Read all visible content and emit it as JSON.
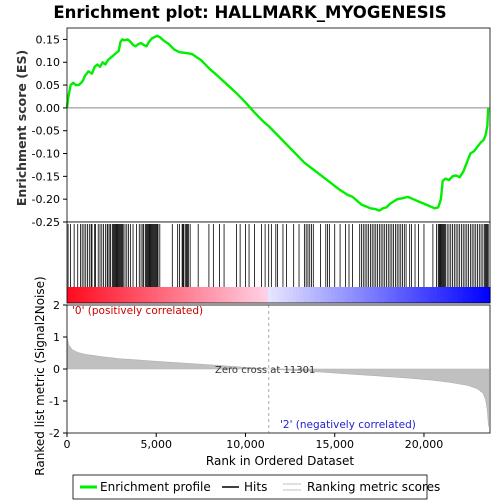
{
  "chart_data": {
    "type": "line",
    "title": "Enrichment plot: HALLMARK_MYOGENESIS",
    "es_panel": {
      "ylabel": "Enrichment score (ES)",
      "ylim": [
        -0.25,
        0.175
      ],
      "yticks": [
        0.15,
        0.1,
        0.05,
        0.0,
        -0.05,
        -0.1,
        -0.15,
        -0.2,
        -0.25
      ],
      "ytick_labels": [
        "0.15",
        "0.10",
        "0.05",
        "0.00",
        "-0.05",
        "-0.10",
        "-0.15",
        "-0.20",
        "-0.25"
      ],
      "series": [
        {
          "name": "Enrichment profile",
          "color": "#00ee00",
          "x": [
            0,
            60,
            200,
            350,
            500,
            650,
            800,
            900,
            1000,
            1200,
            1400,
            1550,
            1700,
            1850,
            2000,
            2150,
            2300,
            2450,
            2600,
            2750,
            2900,
            3000,
            3100,
            3200,
            3400,
            3550,
            3700,
            3850,
            4000,
            4150,
            4300,
            4450,
            4600,
            4750,
            4900,
            5050,
            5200,
            5400,
            5700,
            6000,
            6300,
            6700,
            7000,
            7500,
            8000,
            8500,
            9000,
            9500,
            10000,
            10500,
            11000,
            11301,
            11800,
            12300,
            12800,
            13300,
            13800,
            14300,
            14800,
            15300,
            15700,
            16000,
            16300,
            16500,
            16700,
            17000,
            17300,
            17500,
            17700,
            17900,
            18100,
            18300,
            18500,
            18800,
            19100,
            19400,
            19700,
            20000,
            20300,
            20600,
            20800,
            20950,
            21050,
            21200,
            21400,
            21600,
            21800,
            22000,
            22200,
            22400,
            22600,
            22800,
            23000,
            23200,
            23350,
            23450,
            23550,
            23600
          ],
          "y": [
            0.0,
            0.02,
            0.05,
            0.055,
            0.05,
            0.05,
            0.055,
            0.06,
            0.07,
            0.08,
            0.075,
            0.09,
            0.095,
            0.09,
            0.1,
            0.095,
            0.105,
            0.11,
            0.115,
            0.12,
            0.125,
            0.145,
            0.15,
            0.148,
            0.15,
            0.145,
            0.138,
            0.135,
            0.14,
            0.142,
            0.138,
            0.135,
            0.145,
            0.152,
            0.155,
            0.158,
            0.155,
            0.148,
            0.14,
            0.128,
            0.122,
            0.12,
            0.118,
            0.105,
            0.085,
            0.068,
            0.05,
            0.032,
            0.012,
            -0.01,
            -0.03,
            -0.04,
            -0.06,
            -0.08,
            -0.1,
            -0.12,
            -0.135,
            -0.15,
            -0.165,
            -0.18,
            -0.19,
            -0.195,
            -0.205,
            -0.212,
            -0.215,
            -0.22,
            -0.222,
            -0.225,
            -0.22,
            -0.218,
            -0.21,
            -0.205,
            -0.2,
            -0.198,
            -0.195,
            -0.2,
            -0.205,
            -0.21,
            -0.215,
            -0.22,
            -0.218,
            -0.2,
            -0.16,
            -0.155,
            -0.158,
            -0.15,
            -0.148,
            -0.152,
            -0.14,
            -0.12,
            -0.1,
            -0.095,
            -0.085,
            -0.075,
            -0.07,
            -0.06,
            -0.04,
            0.0
          ]
        }
      ]
    },
    "hits_panel": {
      "series_name": "Hits",
      "hit_positions": [
        60,
        200,
        400,
        600,
        750,
        850,
        950,
        1050,
        1150,
        1250,
        1350,
        1400,
        1550,
        1600,
        1750,
        1850,
        1950,
        2050,
        2150,
        2250,
        2300,
        2400,
        2450,
        2550,
        2600,
        2650,
        2700,
        2750,
        2800,
        2850,
        2900,
        2950,
        3000,
        3050,
        3100,
        3150,
        3250,
        3350,
        3450,
        3550,
        3700,
        3900,
        4050,
        4150,
        4250,
        4300,
        4400,
        4450,
        4500,
        4550,
        4600,
        4650,
        4700,
        4750,
        4800,
        4850,
        4900,
        4950,
        5000,
        5050,
        5100,
        5200,
        5900,
        6200,
        6300,
        6450,
        6500,
        6550,
        6650,
        6700,
        6750,
        6800,
        6900,
        7350,
        7950,
        8200,
        8550,
        8800,
        9500,
        9700,
        10000,
        10200,
        10500,
        10900,
        11100,
        11300,
        11450,
        11700,
        11800,
        12100,
        12300,
        12700,
        13000,
        13300,
        13400,
        13500,
        13600,
        13700,
        13800,
        14200,
        14500,
        14600,
        14700,
        15000,
        15300,
        15600,
        15800,
        16000,
        16400,
        16500,
        16600,
        16700,
        16800,
        16900,
        17000,
        17100,
        17200,
        17300,
        17400,
        17500,
        17600,
        17700,
        17800,
        17900,
        18000,
        18100,
        18200,
        18300,
        18400,
        18500,
        18600,
        18700,
        18800,
        18900,
        19000,
        19200,
        19300,
        19500,
        19700,
        20000,
        20500,
        20700,
        20800,
        20850,
        20900,
        20950,
        21000,
        21050,
        21100,
        21150,
        21200,
        21300,
        21400,
        21500,
        21600,
        21700,
        21800,
        21900,
        22000,
        22100,
        22200,
        22300,
        22400,
        22500,
        22600,
        22700,
        22800,
        22900,
        23000,
        23100,
        23200,
        23300,
        23400,
        23450,
        23500,
        23550,
        23600
      ]
    },
    "metric_panel": {
      "ylabel": "Ranked list metric (Signal2Noise)",
      "ylim": [
        -2,
        2
      ],
      "yticks": [
        2,
        1,
        0,
        -1,
        -2
      ],
      "ytick_labels": [
        "2",
        "1",
        "0",
        "-1",
        "-2"
      ],
      "series_name": "Ranking metric scores",
      "x": [
        0,
        100,
        300,
        600,
        1000,
        2000,
        3000,
        5000,
        8000,
        11301,
        14000,
        17000,
        19000,
        20500,
        21500,
        22500,
        23000,
        23300,
        23450,
        23550,
        23620
      ],
      "y": [
        1.0,
        0.75,
        0.6,
        0.52,
        0.46,
        0.38,
        0.32,
        0.24,
        0.13,
        0.0,
        -0.09,
        -0.2,
        -0.28,
        -0.35,
        -0.42,
        -0.52,
        -0.62,
        -0.75,
        -0.95,
        -1.3,
        -1.8
      ],
      "zero_cross_label": "Zero cross at 11301",
      "zero_cross": 11301,
      "pos_label": "'0' (positively correlated)",
      "neg_label": "'2' (negatively correlated)"
    },
    "xlabel": "Rank in Ordered Dataset",
    "xlim": [
      0,
      23700
    ],
    "xticks": [
      0,
      5000,
      10000,
      15000,
      20000
    ],
    "xtick_labels": [
      "0",
      "5,000",
      "10,000",
      "15,000",
      "20,000"
    ],
    "legend": {
      "placement": "bottom",
      "entries": [
        {
          "label": "Enrichment profile",
          "color": "#00ee00"
        },
        {
          "label": "Hits",
          "color": "#000000"
        },
        {
          "label": "Ranking metric scores",
          "color": "#c0c0c0"
        }
      ]
    }
  }
}
